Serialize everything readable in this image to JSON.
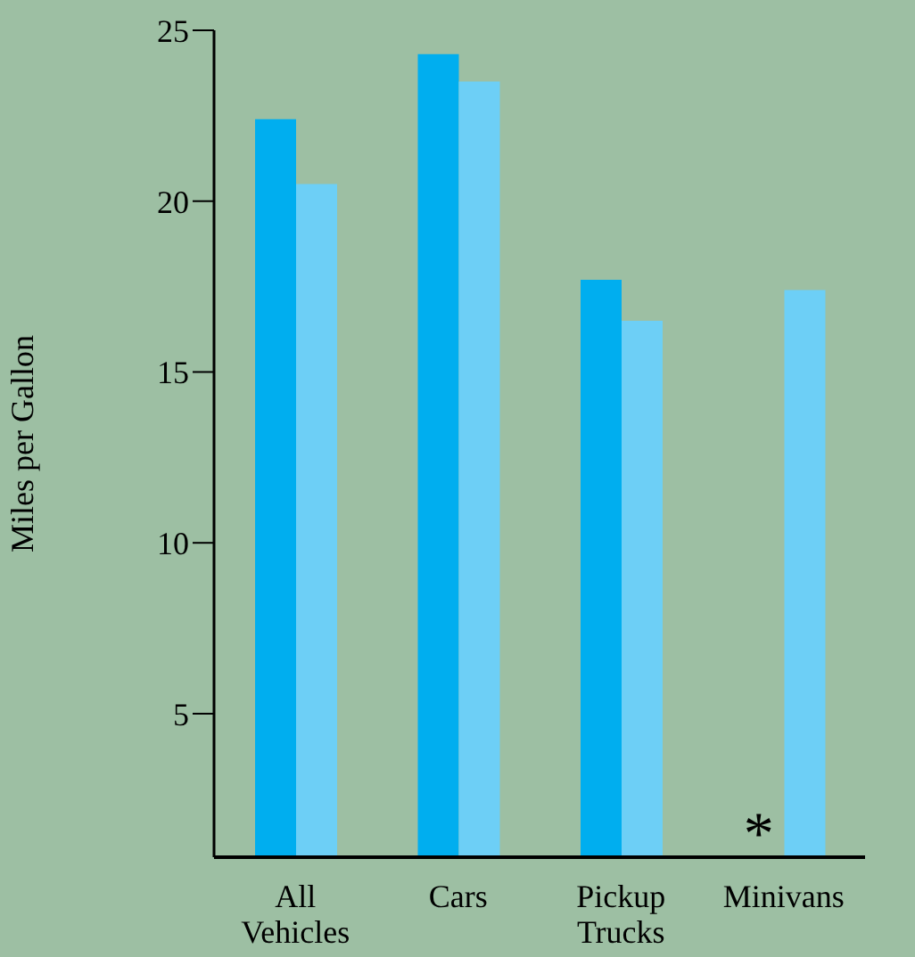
{
  "chart_data": {
    "type": "bar",
    "ylabel": "Miles per Gallon",
    "categories": [
      "All Vehicles",
      "Cars",
      "Pickup Trucks",
      "Minivans"
    ],
    "series": [
      {
        "color": "#00aeef",
        "values": [
          22.4,
          24.3,
          17.7,
          null
        ]
      },
      {
        "color": "#6dcff6",
        "values": [
          20.5,
          23.5,
          16.5,
          17.4
        ]
      }
    ],
    "ylim": [
      0.8,
      25
    ],
    "yticks": [
      5,
      10,
      15,
      20,
      25
    ],
    "grid": false,
    "legend": false,
    "annotations": [
      "*"
    ]
  }
}
